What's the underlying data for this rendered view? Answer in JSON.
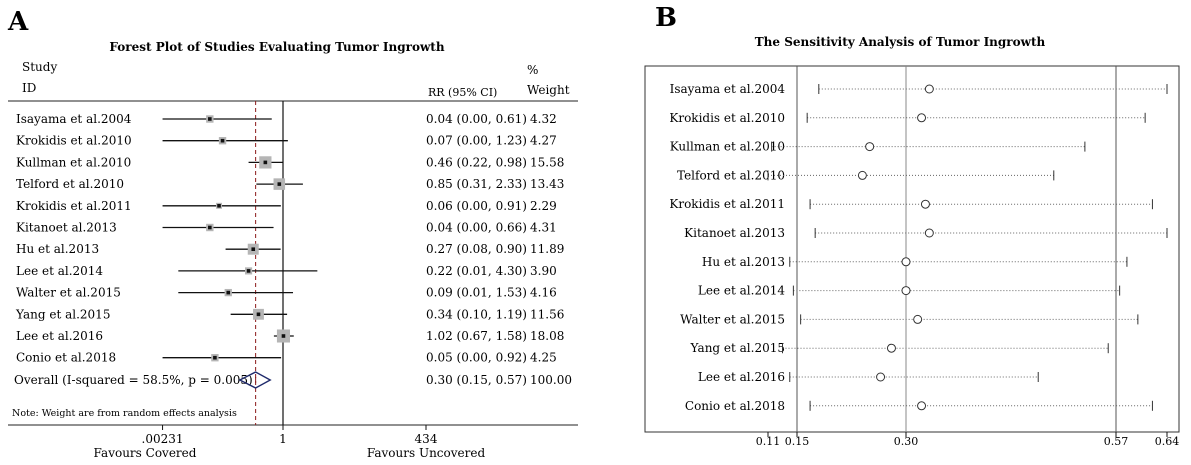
{
  "chart_data": [
    {
      "panel_label": "A",
      "type": "forest",
      "title": "Forest Plot of Studies Evaluating Tumor Ingrowth",
      "headers": {
        "study_1": "Study",
        "study_2": "ID",
        "effect": "RR (95% CI)",
        "weight_1": "%",
        "weight_2": "Weight"
      },
      "x_scale": "log",
      "x_ticks": [
        {
          "value": 0.00231,
          "label": ".00231"
        },
        {
          "value": 1,
          "label": "1"
        },
        {
          "value": 434,
          "label": "434"
        }
      ],
      "xlabel_left": "Favours Covered",
      "xlabel_right": "Favours Uncovered",
      "dashed_line_at": 0.3,
      "studies": [
        {
          "id": "Isayama et al.2004",
          "rr": 0.04,
          "lo": 0.0,
          "hi": 0.61,
          "ci_text": "0.04  (0.00, 0.61)",
          "weight": 4.32,
          "weight_text": "4.32"
        },
        {
          "id": "Krokidis et al.2010",
          "rr": 0.07,
          "lo": 0.0,
          "hi": 1.23,
          "ci_text": "0.07  (0.00, 1.23)",
          "weight": 4.27,
          "weight_text": "4.27"
        },
        {
          "id": "Kullman et al.2010",
          "rr": 0.46,
          "lo": 0.22,
          "hi": 0.98,
          "ci_text": "0.46  (0.22, 0.98)",
          "weight": 15.58,
          "weight_text": "15.58"
        },
        {
          "id": "Telford et al.2010",
          "rr": 0.85,
          "lo": 0.31,
          "hi": 2.33,
          "ci_text": "0.85  (0.31, 2.33)",
          "weight": 13.43,
          "weight_text": "13.43"
        },
        {
          "id": "Krokidis et al.2011",
          "rr": 0.06,
          "lo": 0.0,
          "hi": 0.91,
          "ci_text": "0.06  (0.00, 0.91)",
          "weight": 2.29,
          "weight_text": "2.29"
        },
        {
          "id": "Kitanoet al.2013",
          "rr": 0.04,
          "lo": 0.0,
          "hi": 0.66,
          "ci_text": "0.04  (0.00, 0.66)",
          "weight": 4.31,
          "weight_text": "4.31"
        },
        {
          "id": "Hu et al.2013",
          "rr": 0.27,
          "lo": 0.08,
          "hi": 0.9,
          "ci_text": "0.27  (0.08, 0.90)",
          "weight": 11.89,
          "weight_text": "11.89"
        },
        {
          "id": "Lee et al.2014",
          "rr": 0.22,
          "lo": 0.01,
          "hi": 4.3,
          "ci_text": "0.22  (0.01, 4.30)",
          "weight": 3.9,
          "weight_text": "3.90"
        },
        {
          "id": "Walter et al.2015",
          "rr": 0.09,
          "lo": 0.01,
          "hi": 1.53,
          "ci_text": "0.09  (0.01, 1.53)",
          "weight": 4.16,
          "weight_text": "4.16"
        },
        {
          "id": "Yang et al.2015",
          "rr": 0.34,
          "lo": 0.1,
          "hi": 1.19,
          "ci_text": "0.34  (0.10, 1.19)",
          "weight": 11.56,
          "weight_text": "11.56"
        },
        {
          "id": "Lee et al.2016",
          "rr": 1.02,
          "lo": 0.67,
          "hi": 1.58,
          "ci_text": "1.02  (0.67, 1.58)",
          "weight": 18.08,
          "weight_text": "18.08"
        },
        {
          "id": "Conio et al.2018",
          "rr": 0.05,
          "lo": 0.0,
          "hi": 0.92,
          "ci_text": "0.05  (0.00, 0.92)",
          "weight": 4.25,
          "weight_text": "4.25"
        }
      ],
      "overall": {
        "label": "Overall  (I-squared = 58.5%, p = 0.005)",
        "rr": 0.3,
        "lo": 0.15,
        "hi": 0.57,
        "ci_text": "0.30  (0.15, 0.57)",
        "weight_text": "100.00"
      },
      "note": "Note: Weight are from random effects analysis"
    },
    {
      "panel_label": "B",
      "type": "sensitivity",
      "title": "The Sensitivity Analysis of Tumor Ingrowth",
      "x_ticks": [
        {
          "value": 0.11,
          "label": "0.11"
        },
        {
          "value": 0.15,
          "label": "0.15"
        },
        {
          "value": 0.3,
          "label": "0.30"
        },
        {
          "value": 0.57,
          "label": "0.57"
        },
        {
          "value": 0.64,
          "label": "0.64"
        }
      ],
      "vlines": [
        0.15,
        0.3,
        0.57
      ],
      "xlim": [
        0.11,
        0.64
      ],
      "rows": [
        {
          "label": "Isayama et al.2004",
          "est": 0.33,
          "lo": 0.18,
          "hi": 0.64
        },
        {
          "label": "Krokidis et al.2010",
          "est": 0.32,
          "lo": 0.164,
          "hi": 0.61
        },
        {
          "label": "Kullman et al.2010",
          "est": 0.25,
          "lo": 0.115,
          "hi": 0.53
        },
        {
          "label": "Telford et al.2010",
          "est": 0.24,
          "lo": 0.11,
          "hi": 0.49
        },
        {
          "label": "Krokidis et al.2011",
          "est": 0.325,
          "lo": 0.168,
          "hi": 0.62
        },
        {
          "label": "Kitanoet al.2013",
          "est": 0.33,
          "lo": 0.175,
          "hi": 0.64
        },
        {
          "label": "Hu et al.2013",
          "est": 0.3,
          "lo": 0.14,
          "hi": 0.585
        },
        {
          "label": "Lee et al.2014",
          "est": 0.3,
          "lo": 0.145,
          "hi": 0.575
        },
        {
          "label": "Walter et al.2015",
          "est": 0.315,
          "lo": 0.155,
          "hi": 0.6
        },
        {
          "label": "Yang et al.2015",
          "est": 0.28,
          "lo": 0.13,
          "hi": 0.56
        },
        {
          "label": "Lee et al.2016",
          "est": 0.265,
          "lo": 0.14,
          "hi": 0.47
        },
        {
          "label": "Conio et al.2018",
          "est": 0.32,
          "lo": 0.168,
          "hi": 0.62
        }
      ]
    }
  ]
}
